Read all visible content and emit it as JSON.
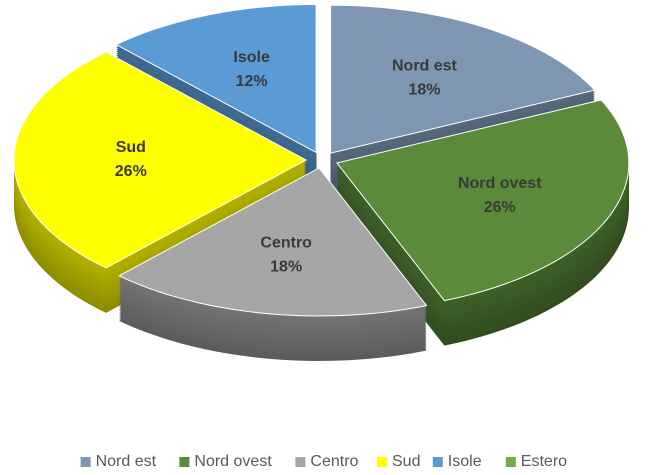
{
  "chart_data": {
    "type": "pie",
    "categories": [
      "Nord est",
      "Nord ovest",
      "Centro",
      "Sud",
      "Isole",
      "Estero"
    ],
    "values": [
      18,
      26,
      18,
      26,
      12,
      0
    ],
    "value_labels": [
      "18%",
      "26%",
      "18%",
      "26%",
      "12%",
      null
    ],
    "colors": [
      "#7f96b2",
      "#5a8a3a",
      "#a6a6a6",
      "#ffff00",
      "#5b9bd5",
      "#70ad47"
    ],
    "legend": "bottom"
  }
}
